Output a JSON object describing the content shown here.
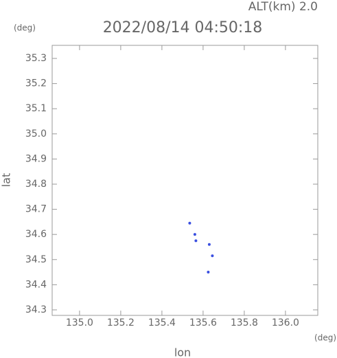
{
  "chart_data": {
    "type": "scatter",
    "title": "2022/08/14 04:50:18",
    "subtitle": "ALT(km) 2.0",
    "x_label": "lon",
    "y_label": "lat",
    "x_unit": "(deg)",
    "y_unit": "(deg)",
    "x": [
      135.535,
      135.56,
      135.565,
      135.63,
      135.645,
      135.625
    ],
    "series": [
      {
        "color": "#3a4fe0",
        "values": [
          34.645,
          34.6,
          34.575,
          34.56,
          34.515,
          34.45
        ]
      }
    ],
    "xlim": [
      134.867,
      136.157
    ],
    "ylim": [
      34.278,
      35.352
    ],
    "xticks": [
      {
        "value": 135,
        "label": "135.0"
      },
      135.2,
      135.4,
      135.6,
      135.8,
      {
        "value": 136,
        "label": "136.0"
      }
    ],
    "yticks": [
      34.3,
      34.4,
      34.5,
      34.6,
      34.7,
      34.8,
      34.9,
      {
        "value": 35,
        "label": "35.0"
      },
      35.1,
      35.2,
      35.3
    ],
    "grid": false
  }
}
